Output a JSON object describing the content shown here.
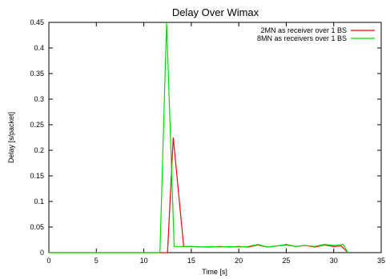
{
  "chart_data": {
    "type": "line",
    "title": "Delay Over Wimax",
    "xlabel": "Time [s]",
    "ylabel": "Delay [s/packet]",
    "xlim": [
      0,
      35
    ],
    "ylim": [
      0,
      0.45
    ],
    "xticks": [
      "0",
      "5",
      "10",
      "15",
      "20",
      "25",
      "30",
      "35"
    ],
    "yticks": [
      "0",
      "0.05",
      "0.1",
      "0.15",
      "0.2",
      "0.25",
      "0.3",
      "0.35",
      "0.4",
      "0.45"
    ],
    "grid": false,
    "legend_position": "top-right",
    "series": [
      {
        "name": "2MN as receiver over 1 BS",
        "color": "#ff0000",
        "x": [
          0,
          12.5,
          13.1,
          14.2,
          15,
          16,
          17,
          18,
          19,
          20,
          21,
          22,
          23,
          24,
          25,
          26,
          27,
          28,
          29,
          30,
          30.8,
          31.5
        ],
        "y": [
          0,
          0,
          0.225,
          0.012,
          0.012,
          0.011,
          0.011,
          0.012,
          0.011,
          0.012,
          0.011,
          0.015,
          0.011,
          0.013,
          0.015,
          0.012,
          0.014,
          0.011,
          0.015,
          0.012,
          0.013,
          0
        ]
      },
      {
        "name": "8MN as receivers over 1 BS",
        "color": "#00dd00",
        "x": [
          0,
          11.7,
          12.4,
          13.2,
          14,
          15,
          16,
          17,
          18,
          19,
          20,
          21,
          22,
          23,
          24,
          25,
          26,
          27,
          28,
          29,
          30,
          31,
          31.5
        ],
        "y": [
          0,
          0,
          0.45,
          0.012,
          0.012,
          0.012,
          0.011,
          0.012,
          0.011,
          0.012,
          0.011,
          0.012,
          0.016,
          0.011,
          0.013,
          0.016,
          0.012,
          0.014,
          0.012,
          0.016,
          0.014,
          0.016,
          0
        ]
      }
    ]
  }
}
